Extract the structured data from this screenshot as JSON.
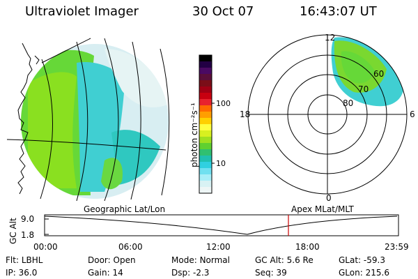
{
  "header": {
    "title": "Ultraviolet Imager",
    "date": "30 Oct 07",
    "time": "16:43:07 UT"
  },
  "colorbar": {
    "label": "photon cm⁻²s⁻¹",
    "tick_labels": [
      "100",
      "10"
    ],
    "colors_top_to_bottom": [
      "#000000",
      "#220044",
      "#4a0a63",
      "#5a0f3a",
      "#7a0e18",
      "#a00014",
      "#c80010",
      "#e8222e",
      "#ff6a00",
      "#ff9e00",
      "#ffd000",
      "#ffff40",
      "#d8f020",
      "#a0e020",
      "#60d030",
      "#30c070",
      "#20c0b0",
      "#30d0e0",
      "#70e0f0",
      "#a8eef8",
      "#d8f2f4",
      "#eef6f6"
    ]
  },
  "polar": {
    "top": "12",
    "left": "18",
    "right": "6",
    "bottom": "0",
    "lat_labels": [
      "80",
      "70",
      "60"
    ]
  },
  "map": {
    "caption": "Geographic Lat/Lon"
  },
  "apex_caption": "Apex MLat/MLT",
  "altitude_plot": {
    "axis_label": "GC Alt",
    "y_ticks": [
      "9.0",
      "1.8"
    ],
    "x_ticks": [
      "00:00",
      "06:00",
      "12:00",
      "18:00",
      "23:59"
    ],
    "marker_color": "#cc0000"
  },
  "meta": {
    "row1": [
      {
        "label": "Flt:",
        "value": "LBHL"
      },
      {
        "label": "Door:",
        "value": "Open"
      },
      {
        "label": "Mode:",
        "value": "Normal"
      },
      {
        "label": "GC Alt:",
        "value": "5.6 Re"
      },
      {
        "label": "GLat:",
        "value": "-59.3"
      }
    ],
    "row2": [
      {
        "label": "IP:",
        "value": "36.0"
      },
      {
        "label": "Gain:",
        "value": "14"
      },
      {
        "label": "Dsp:",
        "value": "-2.3"
      },
      {
        "label": "Seq:",
        "value": "39"
      },
      {
        "label": "GLon:",
        "value": "215.6"
      }
    ]
  }
}
